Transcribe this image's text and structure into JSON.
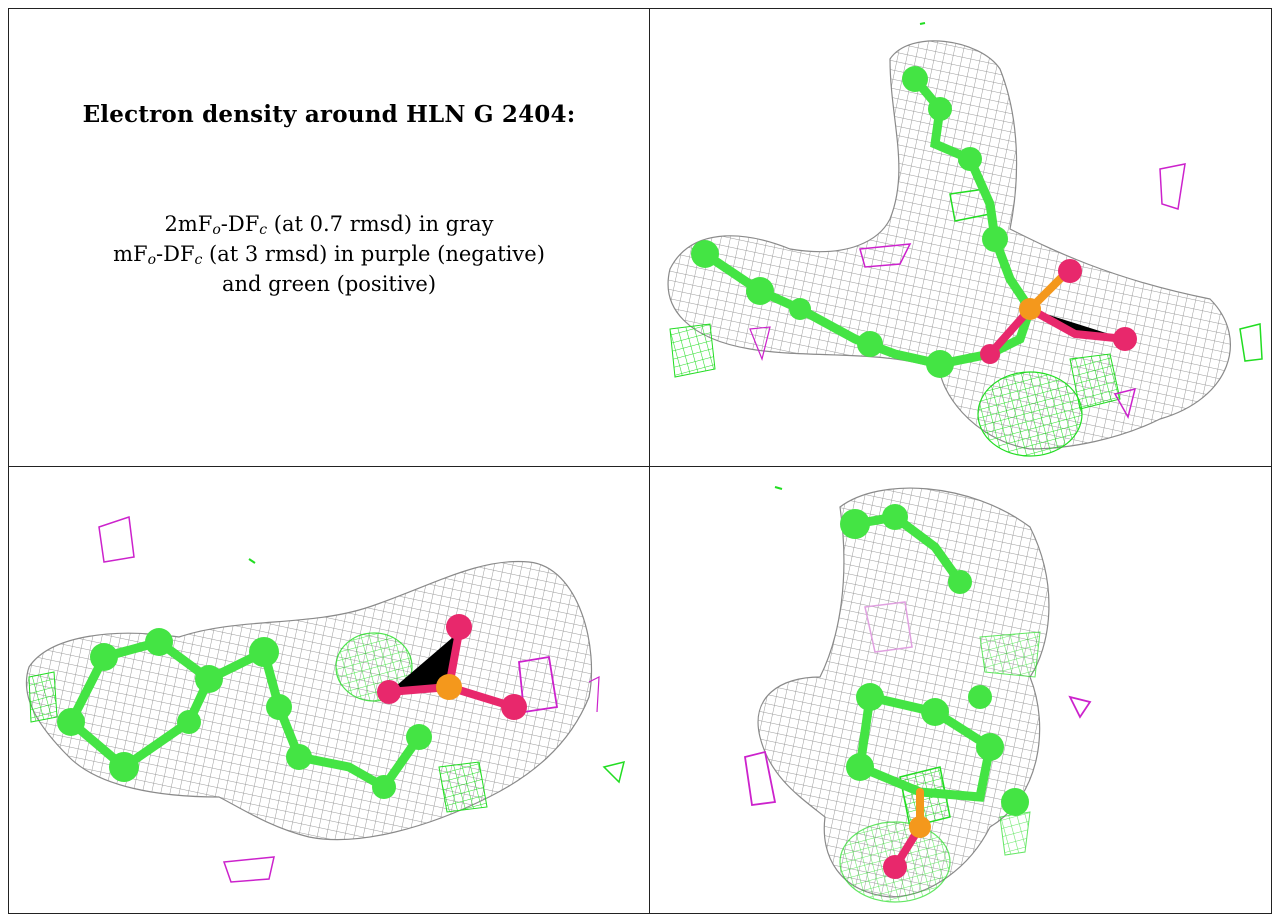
{
  "caption": {
    "title": "Electron density around HLN G 2404:",
    "line1": {
      "pre": "2mF",
      "sub1": "o",
      "mid": "-DF",
      "sub2": "c",
      "post": " (at 0.7 rmsd) in gray"
    },
    "line2": {
      "pre": "mF",
      "sub1": "o",
      "mid": "-DF",
      "sub2": "c",
      "post": " (at 3 rmsd) in purple (negative)"
    },
    "line3": "and green (positive)"
  },
  "colors": {
    "mesh_2fofc": "#9a9a9a",
    "mesh_positive": "#22dd22",
    "mesh_negative": "#cc22cc",
    "carbon": "#44e444",
    "oxygen": "#e8286c",
    "phosphorus": "#f4981c"
  },
  "panels": [
    "view-top-right",
    "view-bottom-left",
    "view-bottom-right"
  ]
}
